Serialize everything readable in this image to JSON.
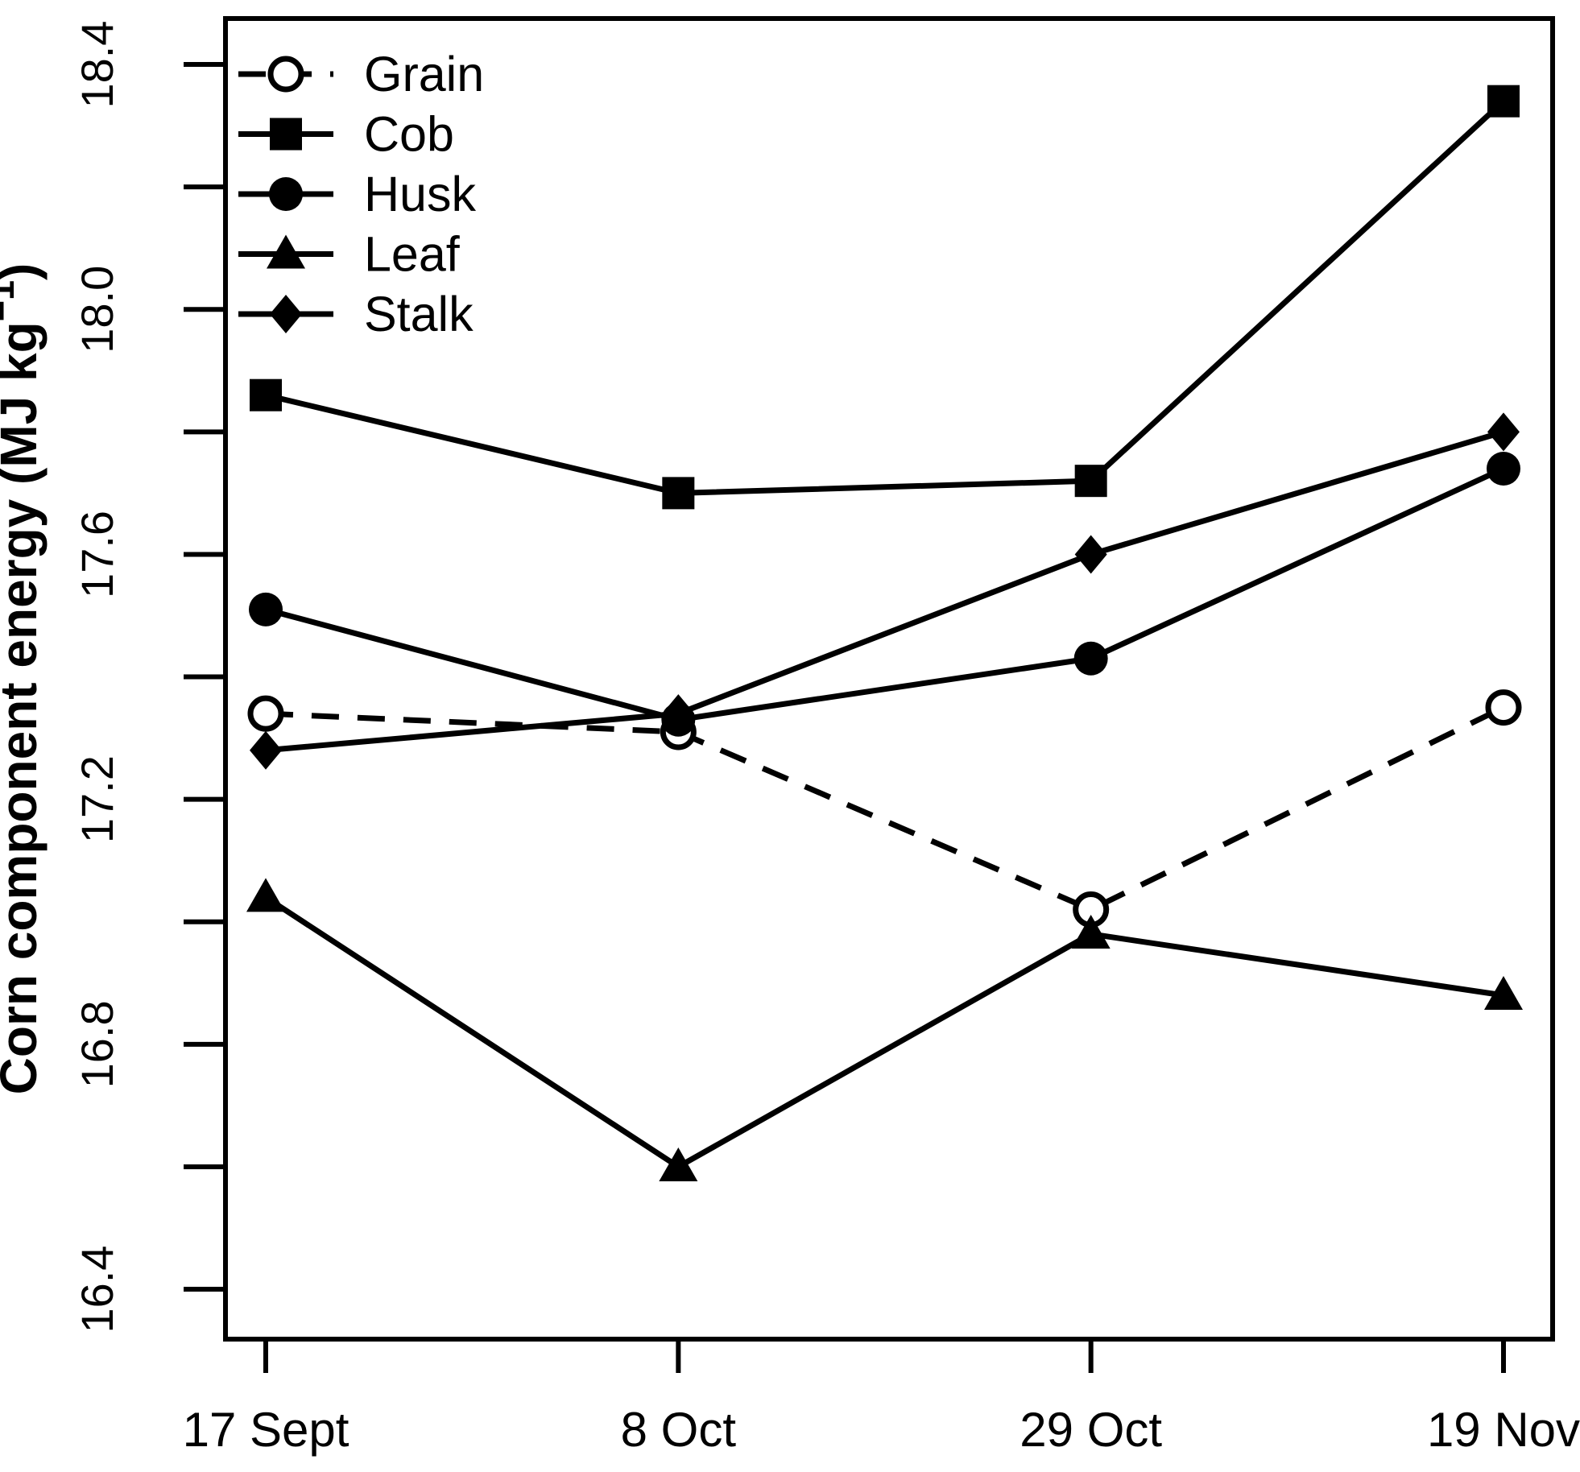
{
  "chart_data": {
    "type": "line",
    "title": "",
    "xlabel": "",
    "ylabel_main": "Corn component energy (MJ kg",
    "ylabel_sup": "−1",
    "ylabel_end": ")",
    "categories": [
      "17 Sept",
      "8 Oct",
      "29 Oct",
      "19 Nov"
    ],
    "series": [
      {
        "name": "Grain",
        "marker": "open-circle",
        "line": "dashed",
        "values": [
          17.34,
          17.31,
          17.02,
          17.35
        ]
      },
      {
        "name": "Cob",
        "marker": "filled-square",
        "line": "solid",
        "values": [
          17.86,
          17.7,
          17.72,
          18.34
        ]
      },
      {
        "name": "Husk",
        "marker": "filled-circle",
        "line": "solid",
        "values": [
          17.51,
          17.33,
          17.43,
          17.74
        ]
      },
      {
        "name": "Leaf",
        "marker": "filled-triangle",
        "line": "solid",
        "values": [
          17.04,
          16.6,
          16.98,
          16.88
        ]
      },
      {
        "name": "Stalk",
        "marker": "filled-diamond",
        "line": "solid",
        "values": [
          17.28,
          17.34,
          17.6,
          17.8
        ]
      }
    ],
    "y_axis": {
      "tick_min": 16.4,
      "tick_max": 18.4,
      "tick_step": 0.2,
      "label_step": 0.4,
      "labels": [
        "16.4",
        "16.8",
        "17.2",
        "17.6",
        "18.0",
        "18.4"
      ]
    },
    "ylim": [
      16.318,
      18.475
    ],
    "grid": false,
    "legend_position": "top-left",
    "colors": {
      "foreground": "#000000",
      "background": "#ffffff"
    }
  }
}
